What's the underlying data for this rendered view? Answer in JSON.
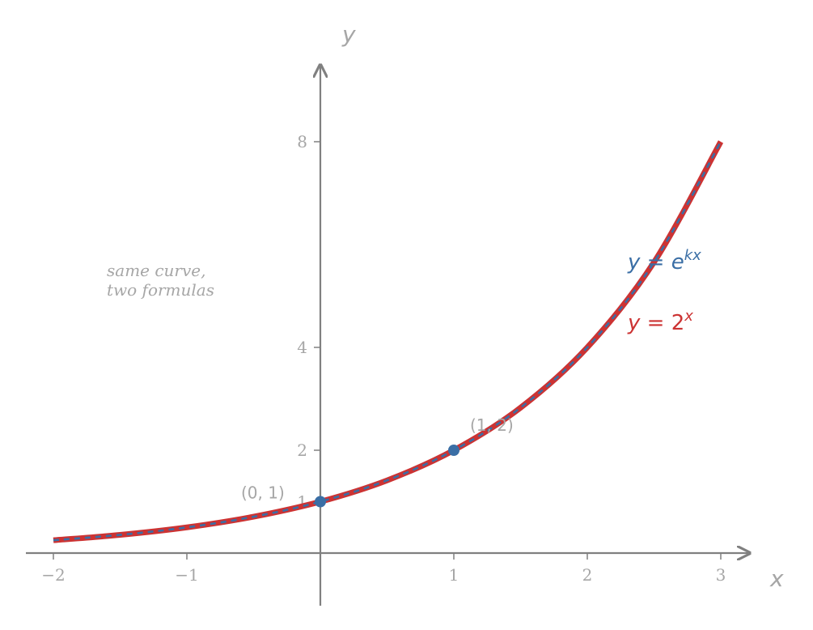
{
  "chart_data": {
    "type": "line",
    "xlabel": "x",
    "ylabel": "y",
    "xlim": [
      -2.2,
      3.2
    ],
    "ylim": [
      -1,
      9.5
    ],
    "x_ticks": [
      -2,
      -1,
      1,
      2,
      3
    ],
    "x_tick_labels": [
      "−2",
      "−1",
      "1",
      "2",
      "3"
    ],
    "y_ticks": [
      1,
      2,
      4,
      8
    ],
    "y_tick_labels": [
      "1",
      "2",
      "4",
      "8"
    ],
    "grid": false,
    "series": [
      {
        "name": "y = 2^x",
        "color": "#cc3333",
        "style": "solid",
        "x": [
          -2,
          -1.5,
          -1,
          -0.5,
          0,
          0.5,
          1,
          1.5,
          2,
          2.5,
          3
        ],
        "y": [
          0.25,
          0.354,
          0.5,
          0.707,
          1,
          1.414,
          2,
          2.828,
          4,
          5.657,
          8
        ]
      },
      {
        "name": "y = e^kx",
        "color": "#3a6ea5",
        "style": "dashed",
        "x": [
          -2,
          -1.5,
          -1,
          -0.5,
          0,
          0.5,
          1,
          1.5,
          2,
          2.5,
          3
        ],
        "y": [
          0.25,
          0.354,
          0.5,
          0.707,
          1,
          1.414,
          2,
          2.828,
          4,
          5.657,
          8
        ]
      }
    ],
    "points": [
      {
        "x": 0,
        "y": 1,
        "label": "(0, 1)"
      },
      {
        "x": 1,
        "y": 2,
        "label": "(1, 2)"
      }
    ],
    "formula_labels": {
      "ekx": {
        "lhs": "y",
        "eq": " = ",
        "base": "e",
        "exp": "kx",
        "color": "#3a6ea5"
      },
      "two_x": {
        "lhs": "y",
        "eq": " = ",
        "base": "2",
        "exp": "x",
        "color": "#cc3333"
      }
    },
    "annotation": [
      "same curve,",
      "two formulas"
    ]
  }
}
